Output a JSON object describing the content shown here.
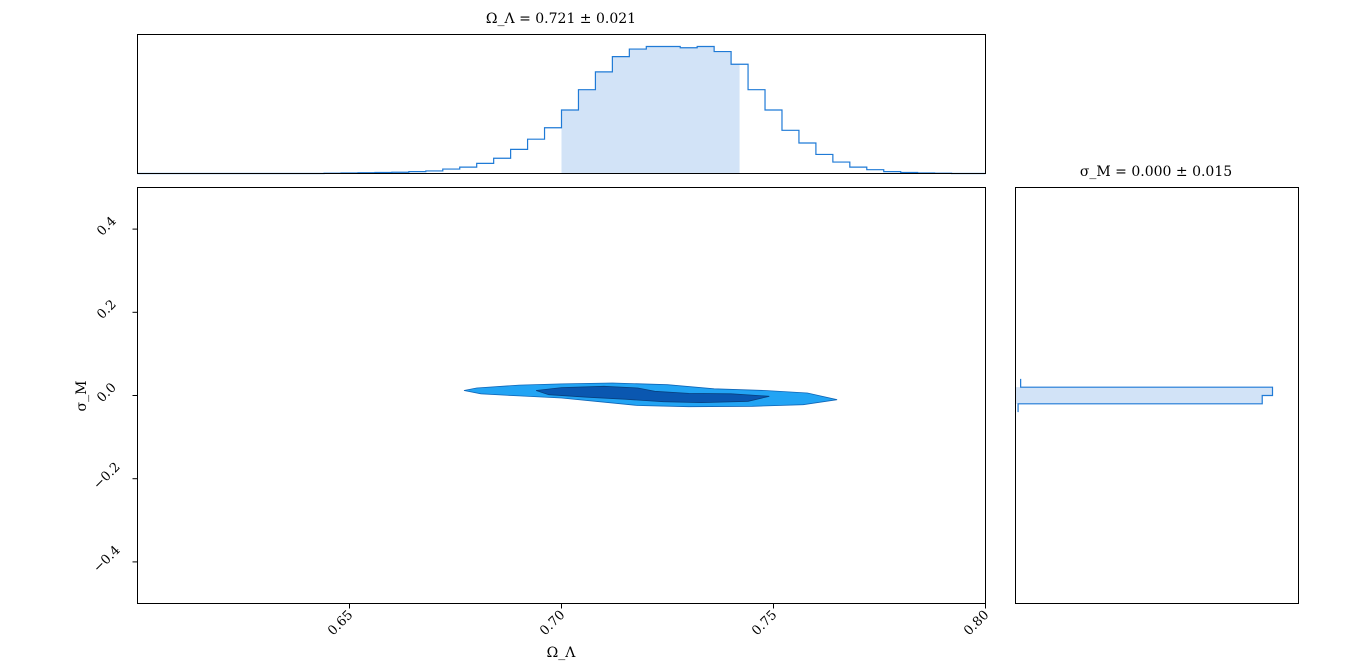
{
  "chart_data": [
    {
      "type": "area",
      "role": "marginal-x",
      "title": "Ω_Λ = 0.721 ± 0.021",
      "xlim": [
        0.6,
        0.8
      ],
      "bins_x": [
        0.6,
        0.604,
        0.608,
        0.612,
        0.616,
        0.62,
        0.624,
        0.628,
        0.632,
        0.636,
        0.64,
        0.644,
        0.648,
        0.652,
        0.656,
        0.66,
        0.664,
        0.668,
        0.672,
        0.676,
        0.68,
        0.684,
        0.688,
        0.692,
        0.696,
        0.7,
        0.704,
        0.708,
        0.712,
        0.716,
        0.72,
        0.724,
        0.728,
        0.732,
        0.736,
        0.74,
        0.744,
        0.748,
        0.752,
        0.756,
        0.76,
        0.764,
        0.768,
        0.772,
        0.776,
        0.78,
        0.784,
        0.788,
        0.792,
        0.796,
        0.8
      ],
      "density": [
        0.0,
        0.0,
        0.0,
        0.0,
        0.0,
        0.0,
        0.0,
        0.0,
        0.0,
        0.0,
        0.0,
        0.002,
        0.004,
        0.006,
        0.008,
        0.01,
        0.015,
        0.02,
        0.035,
        0.05,
        0.08,
        0.12,
        0.19,
        0.27,
        0.36,
        0.5,
        0.66,
        0.8,
        0.92,
        0.98,
        1.0,
        1.0,
        0.99,
        1.0,
        0.96,
        0.86,
        0.66,
        0.5,
        0.34,
        0.24,
        0.15,
        0.09,
        0.05,
        0.03,
        0.015,
        0.008,
        0.004,
        0.002,
        0.0,
        0.0
      ],
      "credible_interval": [
        0.7,
        0.742
      ],
      "color": "#1f7ad6",
      "fill_color": "#d2e3f7"
    },
    {
      "type": "area",
      "role": "joint-contour",
      "xlabel": "Ω_Λ",
      "ylabel": "σ_M",
      "xlim": [
        0.6,
        0.8
      ],
      "ylim": [
        -0.5,
        0.5
      ],
      "x_ticks": [
        "0.65",
        "0.70",
        "0.75",
        "0.80"
      ],
      "y_ticks": [
        "0.4",
        "0.2",
        "0.0",
        "−0.2",
        "−0.4"
      ],
      "contour_outer": [
        [
          0.677,
          0.012
        ],
        [
          0.68,
          0.018
        ],
        [
          0.69,
          0.025
        ],
        [
          0.7,
          0.028
        ],
        [
          0.712,
          0.03
        ],
        [
          0.725,
          0.026
        ],
        [
          0.736,
          0.016
        ],
        [
          0.748,
          0.012
        ],
        [
          0.758,
          0.006
        ],
        [
          0.765,
          -0.01
        ],
        [
          0.757,
          -0.022
        ],
        [
          0.745,
          -0.026
        ],
        [
          0.73,
          -0.027
        ],
        [
          0.718,
          -0.024
        ],
        [
          0.708,
          -0.014
        ],
        [
          0.7,
          -0.006
        ],
        [
          0.69,
          -0.001
        ],
        [
          0.681,
          0.004
        ]
      ],
      "contour_inner": [
        [
          0.694,
          0.012
        ],
        [
          0.7,
          0.019
        ],
        [
          0.71,
          0.022
        ],
        [
          0.718,
          0.018
        ],
        [
          0.722,
          0.01
        ],
        [
          0.73,
          0.005
        ],
        [
          0.74,
          0.004
        ],
        [
          0.749,
          -0.002
        ],
        [
          0.744,
          -0.014
        ],
        [
          0.733,
          -0.017
        ],
        [
          0.724,
          -0.015
        ],
        [
          0.715,
          -0.009
        ],
        [
          0.706,
          -0.004
        ],
        [
          0.697,
          0.002
        ]
      ],
      "outer_color": "#22a4f4",
      "inner_color": "#0a57b0"
    },
    {
      "type": "area",
      "role": "marginal-y",
      "title": "σ_M = 0.000 ± 0.015",
      "ylim": [
        -0.5,
        0.5
      ],
      "bins_y": [
        -0.04,
        -0.02,
        0.0,
        0.02,
        0.04
      ],
      "density": [
        0.01,
        0.96,
        1.0,
        0.02
      ],
      "credible_interval": [
        -0.02,
        0.02
      ],
      "color": "#1f7ad6",
      "fill_color": "#d2e3f7"
    }
  ]
}
